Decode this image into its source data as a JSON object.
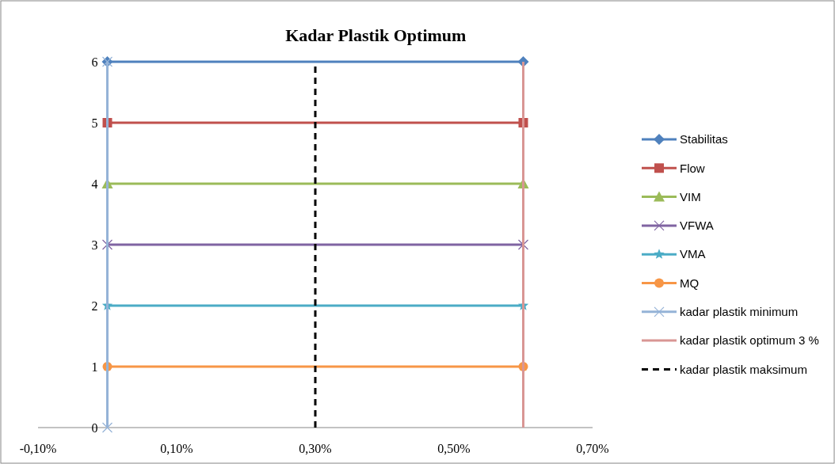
{
  "chart_data": {
    "type": "line",
    "title": "Kadar Plastik Optimum",
    "xlim": [
      -0.1,
      0.7
    ],
    "xticks": [
      {
        "value": -0.1,
        "label": "-0,10%"
      },
      {
        "value": 0.1,
        "label": "0,10%"
      },
      {
        "value": 0.3,
        "label": "0,30%"
      },
      {
        "value": 0.5,
        "label": "0,50%"
      },
      {
        "value": 0.7,
        "label": "0,70%"
      }
    ],
    "ylim": [
      0,
      6
    ],
    "yticks": [
      0,
      1,
      2,
      3,
      4,
      5,
      6
    ],
    "grid": false,
    "legend": "right",
    "series": [
      {
        "name": "Stabilitas",
        "color": "#4f81bd",
        "marker": "diamond",
        "x": [
          0,
          0.6
        ],
        "values": [
          6,
          6
        ]
      },
      {
        "name": "Flow",
        "color": "#c0504d",
        "marker": "square",
        "x": [
          0,
          0.6
        ],
        "values": [
          5,
          5
        ]
      },
      {
        "name": "VIM",
        "color": "#9bbb59",
        "marker": "triangle",
        "x": [
          0,
          0.6
        ],
        "values": [
          4,
          4
        ]
      },
      {
        "name": "VFWA",
        "color": "#8064a2",
        "marker": "cross",
        "x": [
          0,
          0.6
        ],
        "values": [
          3,
          3
        ]
      },
      {
        "name": "VMA",
        "color": "#4bacc6",
        "marker": "star",
        "x": [
          0,
          0.6
        ],
        "values": [
          2,
          2
        ]
      },
      {
        "name": "MQ",
        "color": "#f79646",
        "marker": "circle",
        "x": [
          0,
          0.6
        ],
        "values": [
          1,
          1
        ]
      },
      {
        "name": "kadar plastik minimum",
        "color": "#95b3d7",
        "marker": "cross",
        "x": [
          0,
          0
        ],
        "values": [
          0,
          6
        ]
      },
      {
        "name": "kadar plastik optimum 3 %",
        "color": "#d99694",
        "marker": "none",
        "x": [
          0.6,
          0.6
        ],
        "values": [
          0,
          6
        ]
      },
      {
        "name": "kadar plastik maksimum",
        "color": "#000000",
        "marker": "none",
        "line_style": "dashed",
        "x": [
          0.3,
          0.3
        ],
        "values": [
          0,
          6
        ]
      }
    ]
  }
}
